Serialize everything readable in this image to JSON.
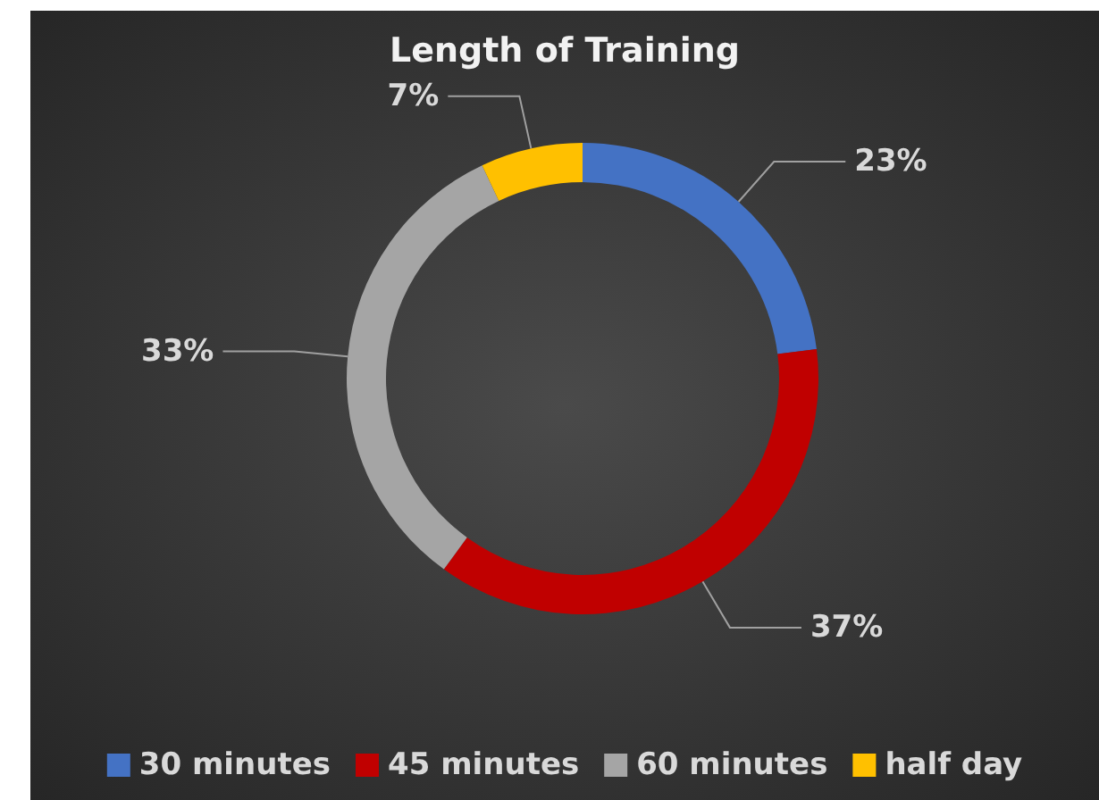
{
  "chart_data": {
    "type": "donut",
    "title": "Length of Training",
    "categories": [
      "30 minutes",
      "45 minutes",
      "60 minutes",
      "half day"
    ],
    "values": [
      23,
      37,
      33,
      7
    ],
    "colors": [
      "#4472c4",
      "#c00000",
      "#a5a5a5",
      "#ffc000"
    ],
    "value_labels": [
      "23%",
      "37%",
      "33%",
      "7%"
    ],
    "legend": "bottom"
  }
}
